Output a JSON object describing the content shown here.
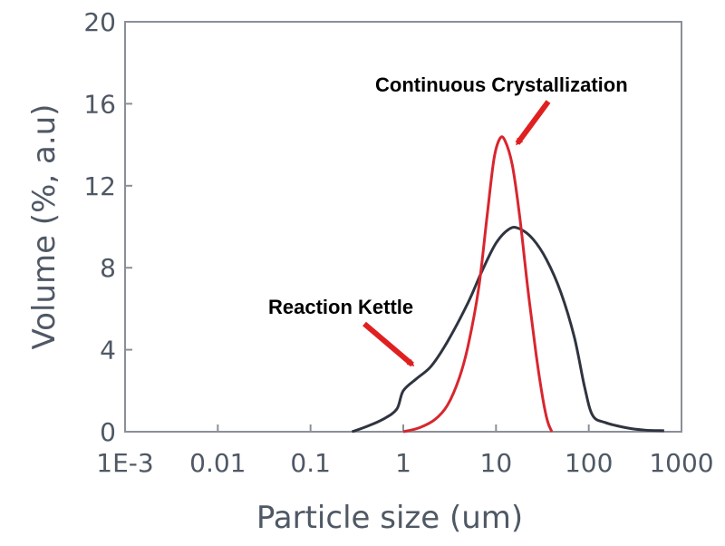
{
  "chart_data": {
    "type": "line",
    "title": "",
    "xlabel": "Particle size (um)",
    "ylabel": "Volume (%, a.u)",
    "x_scale": "log",
    "xlim": [
      0.001,
      1000
    ],
    "ylim": [
      0,
      20
    ],
    "x_ticks": [
      {
        "value": 0.001,
        "label": "1E-3"
      },
      {
        "value": 0.01,
        "label": "0.01"
      },
      {
        "value": 0.1,
        "label": "0.1"
      },
      {
        "value": 1,
        "label": "1"
      },
      {
        "value": 10,
        "label": "10"
      },
      {
        "value": 100,
        "label": "100"
      },
      {
        "value": 1000,
        "label": "1000"
      }
    ],
    "y_ticks": [
      {
        "value": 0,
        "label": "0"
      },
      {
        "value": 4,
        "label": "4"
      },
      {
        "value": 8,
        "label": "8"
      },
      {
        "value": 12,
        "label": "12"
      },
      {
        "value": 16,
        "label": "16"
      },
      {
        "value": 20,
        "label": "20"
      }
    ],
    "grid": false,
    "legend": "none",
    "series": [
      {
        "name": "Reaction Kettle",
        "color": "#2f3440",
        "points": [
          [
            0.28,
            0
          ],
          [
            0.4,
            0.25
          ],
          [
            0.6,
            0.6
          ],
          [
            0.85,
            1.1
          ],
          [
            1.0,
            2.0
          ],
          [
            1.4,
            2.6
          ],
          [
            2.0,
            3.2
          ],
          [
            3.0,
            4.4
          ],
          [
            5.0,
            6.3
          ],
          [
            7.0,
            7.8
          ],
          [
            10.0,
            9.2
          ],
          [
            14.0,
            9.9
          ],
          [
            18.0,
            9.9
          ],
          [
            25.0,
            9.4
          ],
          [
            35.0,
            8.4
          ],
          [
            50.0,
            6.8
          ],
          [
            70.0,
            4.6
          ],
          [
            90.0,
            2.2
          ],
          [
            110.0,
            0.8
          ],
          [
            150.0,
            0.45
          ],
          [
            250.0,
            0.2
          ],
          [
            400.0,
            0.08
          ],
          [
            650.0,
            0.05
          ]
        ]
      },
      {
        "name": "Continuous Crystallization",
        "color": "#d8262e",
        "points": [
          [
            1.0,
            0
          ],
          [
            1.5,
            0.2
          ],
          [
            2.2,
            0.6
          ],
          [
            3.0,
            1.3
          ],
          [
            4.0,
            2.6
          ],
          [
            5.0,
            4.2
          ],
          [
            6.5,
            7.0
          ],
          [
            8.0,
            10.5
          ],
          [
            9.5,
            13.3
          ],
          [
            11.0,
            14.3
          ],
          [
            12.5,
            14.2
          ],
          [
            15.0,
            13.0
          ],
          [
            18.0,
            10.5
          ],
          [
            22.0,
            7.0
          ],
          [
            27.0,
            3.8
          ],
          [
            32.0,
            1.6
          ],
          [
            36.0,
            0.5
          ],
          [
            40.0,
            0
          ]
        ]
      }
    ],
    "annotations": [
      {
        "text": "Continuous Crystallization",
        "color": "#000000"
      },
      {
        "text": "Reaction Kettle",
        "color": "#000000"
      }
    ]
  }
}
